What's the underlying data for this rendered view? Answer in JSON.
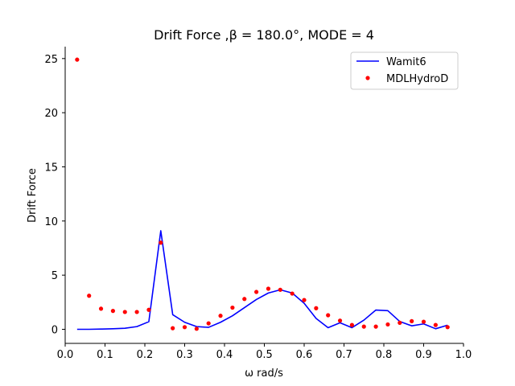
{
  "chart_data": {
    "type": "line",
    "title": "Drift Force ,β = 180.0°, MODE = 4",
    "xlabel": "ω rad/s",
    "ylabel": "Drift Force",
    "xlim": [
      0.0,
      1.0
    ],
    "ylim": [
      -1.3,
      26.1
    ],
    "xticks": [
      0.0,
      0.1,
      0.2,
      0.3,
      0.4,
      0.5,
      0.6,
      0.7,
      0.8,
      0.9,
      1.0
    ],
    "xtick_labels": [
      "0.0",
      "0.1",
      "0.2",
      "0.3",
      "0.4",
      "0.5",
      "0.6",
      "0.7",
      "0.8",
      "0.9",
      "1.0"
    ],
    "yticks": [
      0,
      5,
      10,
      15,
      20,
      25
    ],
    "ytick_labels": [
      "0",
      "5",
      "10",
      "15",
      "20",
      "25"
    ],
    "grid": false,
    "legend_position": "top-right",
    "series": [
      {
        "name": "Wamit6",
        "kind": "line",
        "color": "#0000ff",
        "x": [
          0.03,
          0.06,
          0.09,
          0.12,
          0.15,
          0.18,
          0.21,
          0.24,
          0.27,
          0.3,
          0.33,
          0.36,
          0.39,
          0.42,
          0.45,
          0.48,
          0.51,
          0.54,
          0.57,
          0.6,
          0.63,
          0.66,
          0.69,
          0.72,
          0.75,
          0.78,
          0.81,
          0.84,
          0.87,
          0.9,
          0.93,
          0.96
        ],
        "y": [
          0.0,
          0.0,
          0.02,
          0.05,
          0.1,
          0.25,
          0.7,
          9.1,
          1.35,
          0.65,
          0.25,
          0.18,
          0.65,
          1.25,
          2.0,
          2.75,
          3.35,
          3.65,
          3.35,
          2.4,
          1.0,
          0.15,
          0.6,
          0.15,
          0.85,
          1.78,
          1.72,
          0.72,
          0.32,
          0.5,
          0.05,
          0.38
        ]
      },
      {
        "name": "MDLHydroD",
        "kind": "scatter",
        "color": "#ff0000",
        "x": [
          0.03,
          0.06,
          0.09,
          0.12,
          0.15,
          0.18,
          0.21,
          0.24,
          0.27,
          0.3,
          0.33,
          0.36,
          0.39,
          0.42,
          0.45,
          0.48,
          0.51,
          0.54,
          0.57,
          0.6,
          0.63,
          0.66,
          0.69,
          0.72,
          0.75,
          0.78,
          0.81,
          0.84,
          0.87,
          0.9,
          0.93,
          0.96
        ],
        "y": [
          24.9,
          3.1,
          1.9,
          1.7,
          1.6,
          1.6,
          1.8,
          8.0,
          0.1,
          0.2,
          0.05,
          0.55,
          1.25,
          2.0,
          2.8,
          3.45,
          3.75,
          3.65,
          3.3,
          2.7,
          1.95,
          1.3,
          0.8,
          0.4,
          0.25,
          0.25,
          0.45,
          0.6,
          0.75,
          0.7,
          0.4,
          0.2
        ]
      }
    ]
  }
}
